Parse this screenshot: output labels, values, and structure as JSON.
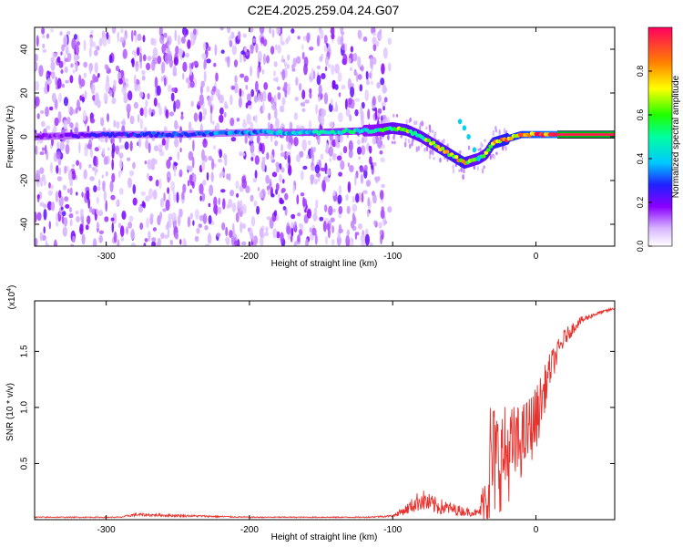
{
  "title": "C2E4.2025.259.04.24.G07",
  "colors": {
    "axis": "#000000",
    "snr_line": "#e8322e",
    "ridge_low": "#6a00e0",
    "ridge_high": "#ff2a2a"
  },
  "chart_data": [
    {
      "type": "heatmap",
      "name": "spectrogram",
      "xlabel": "Height of straight line (km)",
      "ylabel": "Frequency (Hz)",
      "xlim": [
        -350,
        55
      ],
      "ylim": [
        -50,
        50
      ],
      "xticks": [
        -300,
        -200,
        -100,
        0
      ],
      "xtick_labels": [
        "-300",
        "-200",
        "-100",
        "0"
      ],
      "yticks": [
        -40,
        -20,
        0,
        20,
        40
      ],
      "ytick_labels": [
        "-40",
        "-20",
        "0",
        "20",
        "40"
      ],
      "colorbar": {
        "label": "Normalized spectral amplitude",
        "range": [
          0,
          1
        ],
        "ticks": [
          0,
          0.2,
          0.4,
          0.6,
          0.8
        ],
        "tick_labels": [
          "0.0",
          "0.2",
          "0.4",
          "0.6",
          "0.8"
        ],
        "colormap": [
          "#ffffff",
          "#8a00ff",
          "#2020ff",
          "#00e0ff",
          "#00ff60",
          "#ffff00",
          "#ff8000",
          "#ff0050"
        ]
      },
      "noise_extent_km": [
        -350,
        -110
      ],
      "ridge": {
        "x": [
          -350,
          -300,
          -250,
          -200,
          -150,
          -110,
          -100,
          -90,
          -80,
          -70,
          -60,
          -50,
          -45,
          -40,
          -35,
          -30,
          -20,
          -10,
          0,
          10,
          20,
          55
        ],
        "freq": [
          0,
          1,
          1,
          2,
          2,
          3,
          4,
          3,
          0,
          -4,
          -8,
          -12,
          -11,
          -10,
          -8,
          -3,
          -1,
          1,
          1,
          1,
          1,
          1
        ],
        "amplitude": [
          0.15,
          0.25,
          0.3,
          0.35,
          0.45,
          0.5,
          0.6,
          0.65,
          0.6,
          0.65,
          0.7,
          0.75,
          0.6,
          0.6,
          0.65,
          0.75,
          0.8,
          0.85,
          0.9,
          0.95,
          1.0,
          1.0
        ]
      },
      "branch": {
        "x": [
          -53,
          -50,
          -47,
          -43,
          -40
        ],
        "freq": [
          7,
          4,
          0,
          -6,
          -10
        ]
      }
    },
    {
      "type": "line",
      "name": "snr",
      "xlabel": "Height of straight line (km)",
      "ylabel": "SNR (10 * v/v)",
      "ylabel_multiplier": "(x10",
      "ylabel_exponent": "4",
      "ylabel_multiplier_close": ")",
      "xlim": [
        -350,
        55
      ],
      "ylim": [
        0,
        1.95
      ],
      "xticks": [
        -300,
        -200,
        -100,
        0
      ],
      "xtick_labels": [
        "-300",
        "-200",
        "-100",
        "0"
      ],
      "yticks": [
        0.5,
        1.0,
        1.5
      ],
      "ytick_labels": [
        "0.5",
        "1.0",
        "1.5"
      ],
      "envelope": {
        "x": [
          -350,
          -290,
          -280,
          -200,
          -120,
          -100,
          -90,
          -80,
          -75,
          -70,
          -60,
          -50,
          -40,
          -35,
          -32,
          -30,
          -25,
          -20,
          -10,
          0,
          10,
          20,
          30,
          40,
          55
        ],
        "base": [
          0.02,
          0.02,
          0.04,
          0.02,
          0.02,
          0.03,
          0.08,
          0.15,
          0.12,
          0.1,
          0.08,
          0.06,
          0.05,
          0.12,
          0.3,
          0.35,
          0.4,
          0.45,
          0.6,
          0.8,
          1.3,
          1.6,
          1.75,
          1.82,
          1.88
        ],
        "noise_amp": [
          0.01,
          0.01,
          0.03,
          0.01,
          0.01,
          0.02,
          0.1,
          0.2,
          0.18,
          0.16,
          0.12,
          0.08,
          0.06,
          0.6,
          1.3,
          1.1,
          0.95,
          0.9,
          0.65,
          0.6,
          0.3,
          0.15,
          0.08,
          0.04,
          0.02
        ]
      }
    }
  ]
}
